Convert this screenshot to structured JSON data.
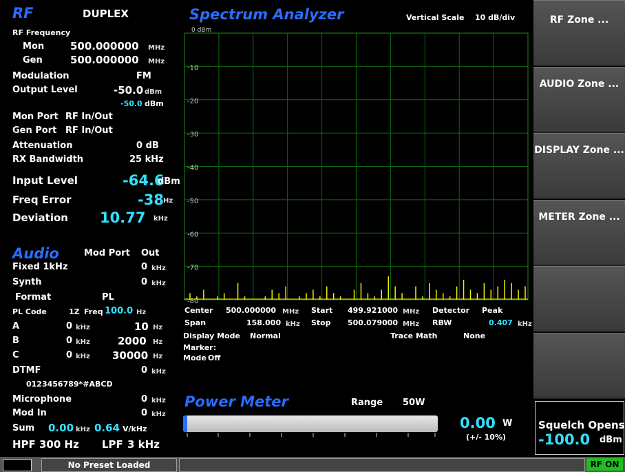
{
  "rf": {
    "title": "RF",
    "mode": "DUPLEX",
    "freq_label": "RF Frequency",
    "mon": {
      "label": "Mon",
      "value": "500.000000",
      "unit": "MHz"
    },
    "gen": {
      "label": "Gen",
      "value": "500.000000",
      "unit": "MHz"
    },
    "modulation": {
      "label": "Modulation",
      "value": "FM"
    },
    "output_level": {
      "label": "Output Level",
      "value": "-50.0",
      "unit": "dBm",
      "actual": "-50.0",
      "actual_unit": "dBm"
    },
    "mon_port": {
      "label": "Mon Port",
      "value": "RF In/Out"
    },
    "gen_port": {
      "label": "Gen Port",
      "value": "RF In/Out"
    },
    "attenuation": {
      "label": "Attenuation",
      "value": "0 dB"
    },
    "rx_bandwidth": {
      "label": "RX Bandwidth",
      "value": "25 kHz"
    },
    "input_level": {
      "label": "Input Level",
      "value": "-64.6",
      "unit": "dBm"
    },
    "freq_error": {
      "label": "Freq Error",
      "value": "-38",
      "unit": "Hz"
    },
    "deviation": {
      "label": "Deviation",
      "value": "10.77",
      "unit": "kHz"
    }
  },
  "audio": {
    "title": "Audio",
    "mod_port_label": "Mod Port",
    "mod_port": "Out",
    "fixed": {
      "label": "Fixed 1kHz",
      "value": "0",
      "unit": "kHz"
    },
    "synth": {
      "label": "Synth",
      "value": "0",
      "unit": "kHz"
    },
    "format": {
      "label": "Format",
      "value": "PL"
    },
    "pl_code": {
      "label": "PL Code",
      "code": "1Z",
      "freq_label": "Freq",
      "freq": "100.0",
      "unit": "Hz"
    },
    "tones": [
      {
        "label": "A",
        "level": "0",
        "level_unit": "kHz",
        "freq": "10",
        "freq_unit": "Hz"
      },
      {
        "label": "B",
        "level": "0",
        "level_unit": "kHz",
        "freq": "2000",
        "freq_unit": "Hz"
      },
      {
        "label": "C",
        "level": "0",
        "level_unit": "kHz",
        "freq": "30000",
        "freq_unit": "Hz"
      }
    ],
    "dtmf": {
      "label": "DTMF",
      "value": "0",
      "unit": "kHz",
      "digits": "0123456789*#ABCD"
    },
    "microphone": {
      "label": "Microphone",
      "value": "0",
      "unit": "kHz"
    },
    "mod_in": {
      "label": "Mod In",
      "value": "0",
      "unit": "kHz"
    },
    "sum": {
      "label": "Sum",
      "value": "0.00",
      "unit": "kHz",
      "sens": "0.64",
      "sens_unit": "V/kHz"
    },
    "hpf": {
      "label": "HPF",
      "value": "300 Hz"
    },
    "lpf": {
      "label": "LPF",
      "value": "3 kHz"
    }
  },
  "spectrum": {
    "title": "Spectrum Analyzer",
    "scale_label": "Vertical Scale",
    "scale": "10 dB/div",
    "ylim": [
      -80,
      0
    ],
    "yticks": [
      {
        "value": 0,
        "label": "0 dBm"
      },
      -10,
      -20,
      -30,
      -40,
      -50,
      -60,
      -70,
      -80
    ],
    "trace": [
      -78,
      -79,
      -77,
      -80,
      -79,
      -78,
      -80,
      -75,
      -79,
      -80,
      -80,
      -79,
      -77,
      -78,
      -76,
      -80,
      -79,
      -78,
      -77,
      -79,
      -76,
      -78,
      -79,
      -80,
      -77,
      -75,
      -78,
      -79,
      -77,
      -73,
      -76,
      -78,
      -80,
      -76,
      -79,
      -75,
      -77,
      -78,
      -79,
      -76,
      -74,
      -77,
      -78,
      -75,
      -77,
      -76,
      -74,
      -75,
      -77,
      -76
    ],
    "center": {
      "label": "Center",
      "value": "500.000000",
      "unit": "MHz"
    },
    "start": {
      "label": "Start",
      "value": "499.921000",
      "unit": "MHz"
    },
    "detector": {
      "label": "Detector",
      "value": "Peak"
    },
    "span": {
      "label": "Span",
      "value": "158.000",
      "unit": "kHz"
    },
    "stop": {
      "label": "Stop",
      "value": "500.079000",
      "unit": "MHz"
    },
    "rbw": {
      "label": "RBW",
      "value": "0.407",
      "unit": "kHz"
    },
    "display_mode": {
      "label": "Display Mode",
      "value": "Normal"
    },
    "trace_math": {
      "label": "Trace Math",
      "value": "None"
    },
    "marker_label": "Marker:",
    "marker_mode": {
      "label": "Mode",
      "value": "Off"
    }
  },
  "power_meter": {
    "title": "Power Meter",
    "range_label": "Range",
    "range": "50W",
    "value": "0.00",
    "unit": "W",
    "tolerance": "(+/- 10%)"
  },
  "softkeys": [
    "RF Zone ...",
    "AUDIO Zone ...",
    "DISPLAY Zone ...",
    "METER Zone ..."
  ],
  "squelch": {
    "label": "Squelch Opens",
    "value": "-100.0",
    "unit": "dBm"
  },
  "status": {
    "preset": "No Preset Loaded",
    "rf_on": "RF ON"
  }
}
